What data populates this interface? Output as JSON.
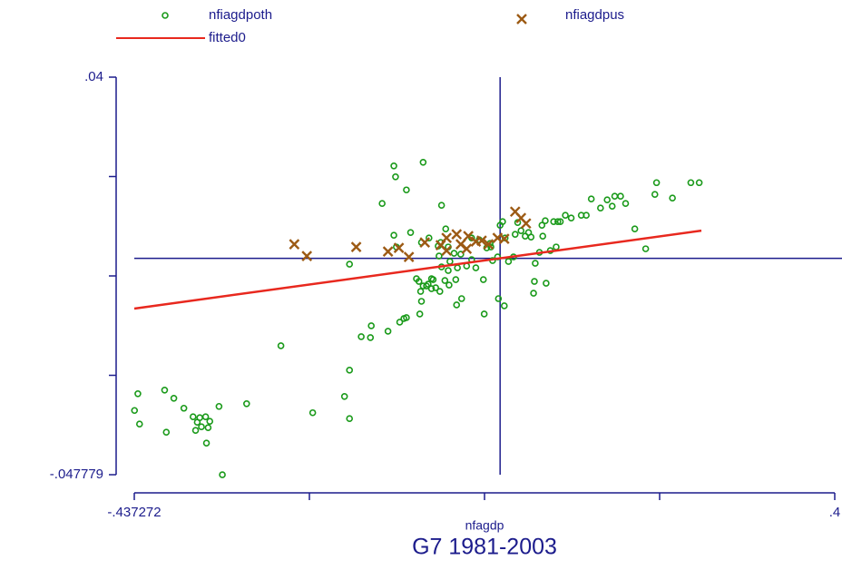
{
  "chart_data": {
    "type": "scatter",
    "title": "G7 1981-2003",
    "xlabel": "nfagdp",
    "xlim": [
      -0.437272,
      0.4
    ],
    "ylim": [
      -0.047779,
      0.04
    ],
    "xticks": [
      {
        "value": -0.437272,
        "label": "-.437272"
      },
      {
        "value": -0.227954,
        "label": null
      },
      {
        "value": -0.018636,
        "label": null
      },
      {
        "value": 0.190682,
        "label": null
      },
      {
        "value": 0.4,
        "label": ".4"
      }
    ],
    "yticks": [
      {
        "value": -0.047779,
        "label": "-.047779"
      },
      {
        "value": -0.0258343,
        "label": null
      },
      {
        "value": -0.0038895,
        "label": null
      },
      {
        "value": 0.0180553,
        "label": null
      },
      {
        "value": 0.04,
        "label": ".04"
      }
    ],
    "xline": 0,
    "yline": 0,
    "axis_color": "#1c1c8c",
    "series": [
      {
        "name": "nfiagdpoth",
        "color": "#1a9a1a",
        "marker": "circle",
        "x": [
          -0.437,
          -0.433,
          -0.431,
          -0.401,
          -0.399,
          -0.39,
          -0.378,
          -0.367,
          -0.362,
          -0.359,
          -0.352,
          -0.357,
          -0.364,
          -0.349,
          -0.347,
          -0.351,
          -0.336,
          -0.332,
          -0.303,
          -0.262,
          -0.224,
          -0.186,
          -0.18,
          -0.18,
          -0.18,
          -0.166,
          -0.155,
          -0.154,
          -0.134,
          -0.141,
          -0.125,
          -0.12,
          -0.115,
          -0.112,
          -0.096,
          -0.094,
          -0.097,
          -0.1,
          -0.092,
          -0.088,
          -0.086,
          -0.082,
          -0.077,
          -0.08,
          -0.095,
          -0.082,
          -0.072,
          -0.066,
          -0.061,
          -0.053,
          -0.052,
          -0.051,
          -0.046,
          -0.07,
          -0.062,
          -0.06,
          -0.073,
          -0.071,
          -0.065,
          -0.062,
          -0.074,
          -0.055,
          -0.047,
          -0.04,
          -0.034,
          -0.029,
          -0.019,
          -0.02,
          -0.016,
          -0.012,
          -0.009,
          -0.003,
          -0.002,
          0.0,
          0.003,
          0.005,
          0.006,
          0.01,
          0.018,
          0.021,
          0.016,
          0.025,
          0.03,
          0.034,
          0.037,
          0.04,
          0.041,
          0.042,
          0.047,
          0.051,
          0.05,
          0.054,
          0.055,
          0.064,
          0.069,
          0.072,
          0.078,
          0.085,
          0.097,
          0.103,
          0.109,
          0.12,
          0.128,
          0.134,
          0.137,
          0.144,
          0.15,
          0.161,
          0.174,
          0.185,
          0.187,
          0.206,
          0.228,
          0.238,
          -0.127,
          -0.124,
          -0.112,
          -0.127,
          -0.092,
          -0.07,
          -0.107,
          -0.094,
          -0.085,
          0.06,
          0.067,
          -0.025,
          -0.011,
          -0.034
        ],
        "values": [
          -0.0336,
          -0.0299,
          -0.0366,
          -0.0291,
          -0.0384,
          -0.0309,
          -0.0331,
          -0.035,
          -0.0362,
          -0.0352,
          -0.035,
          -0.0372,
          -0.038,
          -0.0374,
          -0.036,
          -0.0408,
          -0.0327,
          -0.0478,
          -0.0321,
          -0.0193,
          -0.0341,
          -0.0305,
          -0.0354,
          -0.0247,
          -0.0013,
          -0.0173,
          -0.0175,
          -0.0149,
          -0.0161,
          0.0121,
          0.018,
          -0.0141,
          -0.0133,
          -0.0131,
          -0.0123,
          -0.0095,
          -0.0051,
          -0.0045,
          -0.0061,
          -0.0061,
          -0.0057,
          -0.0067,
          -0.0065,
          -0.0047,
          -0.0073,
          -0.0045,
          -0.0073,
          -0.0049,
          -0.0059,
          -0.0047,
          -0.0103,
          -0.0021,
          -0.0089,
          -0.0019,
          -0.0027,
          -0.0007,
          0.0005,
          0.0035,
          0.0065,
          0.0025,
          0.0027,
          0.0011,
          0.0009,
          -0.0017,
          -0.0003,
          -0.0021,
          -0.0123,
          -0.0047,
          0.0023,
          0.0033,
          -0.0005,
          0.0003,
          -0.0089,
          0.0073,
          0.0081,
          -0.0105,
          0.0045,
          -0.0007,
          0.0053,
          0.0079,
          0.0003,
          0.0061,
          0.0049,
          0.0057,
          0.0047,
          -0.0077,
          -0.0051,
          -0.0011,
          0.0013,
          0.0049,
          0.0073,
          0.0083,
          -0.0055,
          0.0081,
          0.0081,
          0.0081,
          0.0095,
          0.0089,
          0.0095,
          0.0095,
          0.0131,
          0.0111,
          0.0129,
          0.0115,
          0.0137,
          0.0137,
          0.0121,
          0.0065,
          0.0021,
          0.0141,
          0.0167,
          0.0133,
          0.0167,
          0.0167,
          0.0051,
          0.0025,
          0.0151,
          0.0204,
          0.0212,
          0.0117,
          0.0057,
          0.0035,
          0.0045,
          0.0017,
          0.0025,
          0.0041,
          0.0025,
          0.0045
        ]
      },
      {
        "name": "nfiagdpus",
        "color": "#9c5a14",
        "marker": "x",
        "x": [
          -0.246,
          -0.231,
          -0.172,
          -0.134,
          -0.121,
          -0.109,
          -0.09,
          -0.071,
          -0.064,
          -0.064,
          -0.052,
          -0.047,
          -0.04,
          -0.038,
          -0.029,
          -0.022,
          -0.014,
          -0.003,
          0.005,
          0.018,
          0.025,
          0.031
        ],
        "values": [
          0.0031,
          0.0005,
          0.0025,
          0.0015,
          0.0023,
          0.0003,
          0.0035,
          0.0029,
          0.0045,
          0.0017,
          0.0053,
          0.0031,
          0.0021,
          0.0049,
          0.0037,
          0.0039,
          0.0031,
          0.0045,
          0.0043,
          0.0103,
          0.0089,
          0.0077
        ]
      },
      {
        "name": "fitted0",
        "color": "#e8281e",
        "marker": "line",
        "x": [
          -0.437272,
          0.2406
        ],
        "values": [
          -0.0111,
          0.0061
        ]
      }
    ]
  }
}
